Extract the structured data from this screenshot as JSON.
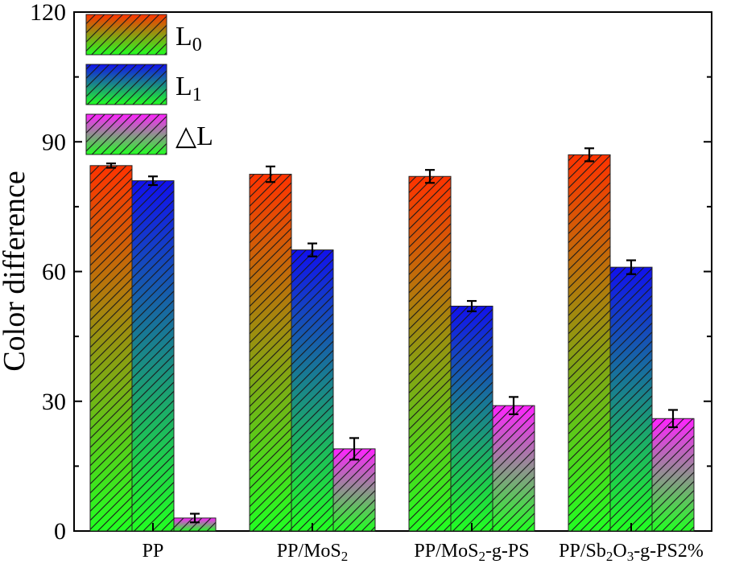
{
  "chart_data": {
    "type": "bar",
    "title": "",
    "xlabel": "",
    "ylabel": "Color difference",
    "ylim": [
      0,
      120
    ],
    "yticks": [
      "0",
      "30",
      "60",
      "90",
      "120"
    ],
    "categories": [
      {
        "base": "PP",
        "sub": "",
        "rest": ""
      },
      {
        "base": "PP/MoS",
        "sub": "2",
        "rest": ""
      },
      {
        "base": "PP/MoS",
        "sub": "2",
        "rest": "-g-PS"
      },
      {
        "base": "PP/Sb",
        "sub": "2",
        "rest": "O",
        "sub2": "3",
        "rest2": "-g-PS2%"
      }
    ],
    "series": [
      {
        "name": "L",
        "sub": "0",
        "values": [
          84.5,
          82.5,
          82,
          87
        ],
        "errors": [
          0.5,
          1.8,
          1.5,
          1.5
        ],
        "top": "#ff3300",
        "bottom": "#22ff22"
      },
      {
        "name": "L",
        "sub": "1",
        "values": [
          81,
          65,
          52,
          61
        ],
        "errors": [
          1,
          1.5,
          1.2,
          1.6
        ],
        "top": "#1111ee",
        "bottom": "#22ff22"
      },
      {
        "name": "△L",
        "sub": "",
        "values": [
          3,
          19,
          29,
          26
        ],
        "errors": [
          1,
          2.5,
          2,
          2
        ],
        "top": "#ff22ff",
        "bottom": "#22ff22"
      }
    ],
    "legend_position": "top-left",
    "grid": false
  }
}
